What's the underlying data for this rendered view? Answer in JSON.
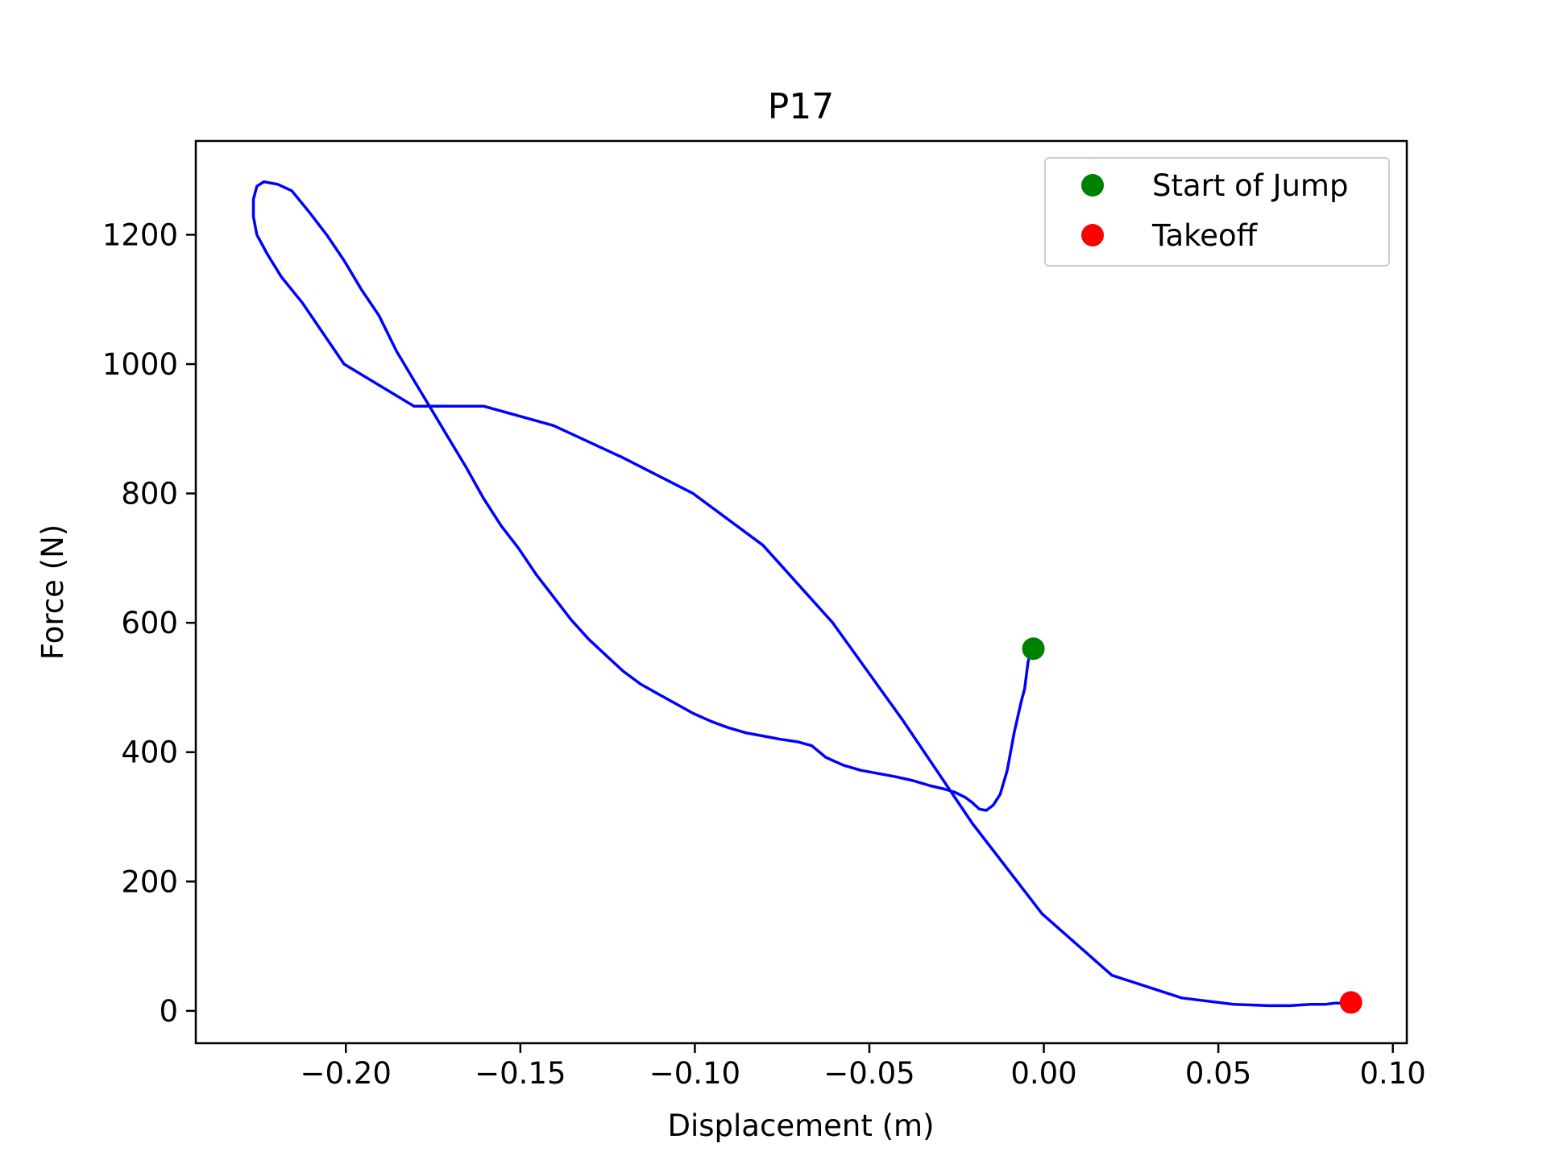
{
  "chart_data": {
    "type": "line",
    "title": "P17",
    "xlabel": "Displacement (m)",
    "ylabel": "Force (N)",
    "xlim": [
      -0.243,
      0.104
    ],
    "ylim": [
      -50,
      1345
    ],
    "xticks": [
      -0.2,
      -0.15,
      -0.1,
      -0.05,
      0.0,
      0.05,
      0.1
    ],
    "xtick_labels": [
      "−0.20",
      "−0.15",
      "−0.10",
      "−0.05",
      "0.00",
      "0.05",
      "0.10"
    ],
    "yticks": [
      0,
      200,
      400,
      600,
      800,
      1000,
      1200
    ],
    "ytick_labels": [
      "0",
      "200",
      "400",
      "600",
      "800",
      "1000",
      "1200"
    ],
    "grid": false,
    "legend_position": "top-right",
    "series": [
      {
        "color": "#0000ff",
        "x": [
          -0.0035,
          -0.0045,
          -0.0055,
          -0.0065,
          -0.0085,
          -0.0105,
          -0.0125,
          -0.0145,
          -0.0165,
          -0.0185,
          -0.0205,
          -0.0225,
          -0.0255,
          -0.0285,
          -0.0325,
          -0.0375,
          -0.0425,
          -0.0475,
          -0.0525,
          -0.0575,
          -0.0625,
          -0.0665,
          -0.0705,
          -0.0755,
          -0.0805,
          -0.0855,
          -0.0905,
          -0.0955,
          -0.1005,
          -0.1055,
          -0.1105,
          -0.1155,
          -0.1205,
          -0.1255,
          -0.1305,
          -0.1355,
          -0.1405,
          -0.1455,
          -0.1505,
          -0.1555,
          -0.1605,
          -0.1655,
          -0.1705,
          -0.1755,
          -0.1805,
          -0.1855,
          -0.1905,
          -0.1955,
          -0.2005,
          -0.2055,
          -0.2105,
          -0.2155,
          -0.2195,
          -0.2235,
          -0.2255,
          -0.2265,
          -0.2265,
          -0.2255,
          -0.2225,
          -0.2185,
          -0.2125,
          -0.2005,
          -0.1805,
          -0.1605,
          -0.1405,
          -0.1205,
          -0.1005,
          -0.0805,
          -0.0605,
          -0.0405,
          -0.0205,
          -0.0005,
          0.0195,
          0.0395,
          0.0545,
          0.0645,
          0.0705,
          0.0765,
          0.0805,
          0.0835,
          0.0855,
          0.0875
        ],
        "y": [
          560,
          540,
          498,
          478,
          430,
          372,
          335,
          318,
          310,
          312,
          322,
          330,
          338,
          343,
          348,
          356,
          362,
          367,
          372,
          380,
          392,
          410,
          416,
          420,
          425,
          430,
          438,
          448,
          460,
          475,
          490,
          505,
          525,
          550,
          575,
          605,
          640,
          675,
          715,
          750,
          792,
          840,
          885,
          930,
          975,
          1020,
          1075,
          1115,
          1160,
          1200,
          1235,
          1268,
          1278,
          1282,
          1275,
          1255,
          1228,
          1200,
          1170,
          1135,
          1095,
          1000,
          935,
          935,
          905,
          855,
          800,
          720,
          600,
          450,
          290,
          150,
          55,
          20,
          10,
          8,
          8,
          10,
          10,
          12,
          12,
          12
        ]
      }
    ],
    "points": [
      {
        "name": "Start of Jump",
        "x": -0.003,
        "y": 560,
        "color": "#008000"
      },
      {
        "name": "Takeoff",
        "x": 0.088,
        "y": 13,
        "color": "#ff0000"
      }
    ]
  }
}
